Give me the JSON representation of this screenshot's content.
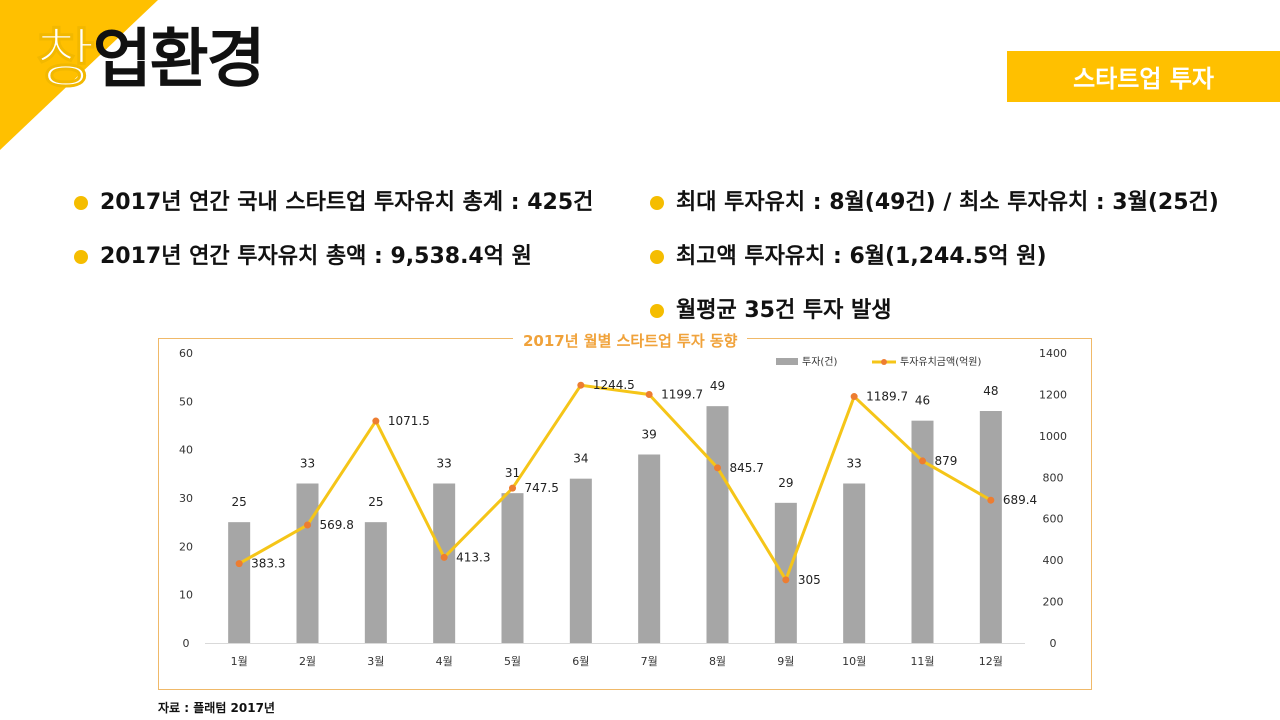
{
  "header": {
    "title_first": "창",
    "title_rest": "업환경",
    "tag": "스타트업 투자"
  },
  "bullets_left": [
    "2017년 연간 국내 스타트업 투자유치 총계 : 425건",
    "2017년 연간 투자유치 총액 : 9,538.4억 원"
  ],
  "bullets_right": [
    "최대 투자유치 : 8월(49건) / 최소 투자유치 : 3월(25건)",
    "최고액 투자유치 : 6월(1,244.5억 원)",
    "월평균 35건 투자 발생"
  ],
  "source": "자료 : 플래텀 2017년",
  "colors": {
    "accent": "#ffc000",
    "bar": "#a6a6a6",
    "line": "#f5c518",
    "marker": "#ed7d31",
    "frame": "#f0b969"
  },
  "chart_data": {
    "type": "bar+line",
    "title": "2017년 월별 스타트업 투자 동향",
    "categories": [
      "1월",
      "2월",
      "3월",
      "4월",
      "5월",
      "6월",
      "7월",
      "8월",
      "9월",
      "10월",
      "11월",
      "12월"
    ],
    "series": [
      {
        "name": "투자(건)",
        "type": "bar",
        "axis": "left",
        "values": [
          25,
          33,
          25,
          33,
          31,
          34,
          39,
          49,
          29,
          33,
          46,
          48
        ],
        "labels": [
          "25",
          "33",
          "25",
          "33",
          "31",
          "34",
          "39",
          "49",
          "29",
          "33",
          "46",
          "48"
        ]
      },
      {
        "name": "투자유치금액(억원)",
        "type": "line",
        "axis": "right",
        "values": [
          383.3,
          569.8,
          1071.5,
          413.3,
          747.5,
          1244.5,
          1199.7,
          845.7,
          305,
          1189.7,
          879,
          689.4
        ],
        "labels": [
          "383.3",
          "569.8",
          "1071.5",
          "413.3",
          "747.5",
          "1244.5",
          "1199.7",
          "845.7",
          "305",
          "1189.7",
          "879",
          "689.4"
        ]
      }
    ],
    "y_left": {
      "min": 0,
      "max": 60,
      "ticks": [
        "0",
        "10",
        "20",
        "30",
        "40",
        "50",
        "60"
      ]
    },
    "y_right": {
      "min": 0,
      "max": 1400,
      "ticks": [
        "0",
        "200",
        "400",
        "600",
        "800",
        "1000",
        "1200",
        "1400"
      ]
    },
    "legend_position": "top-right",
    "grid": false
  }
}
